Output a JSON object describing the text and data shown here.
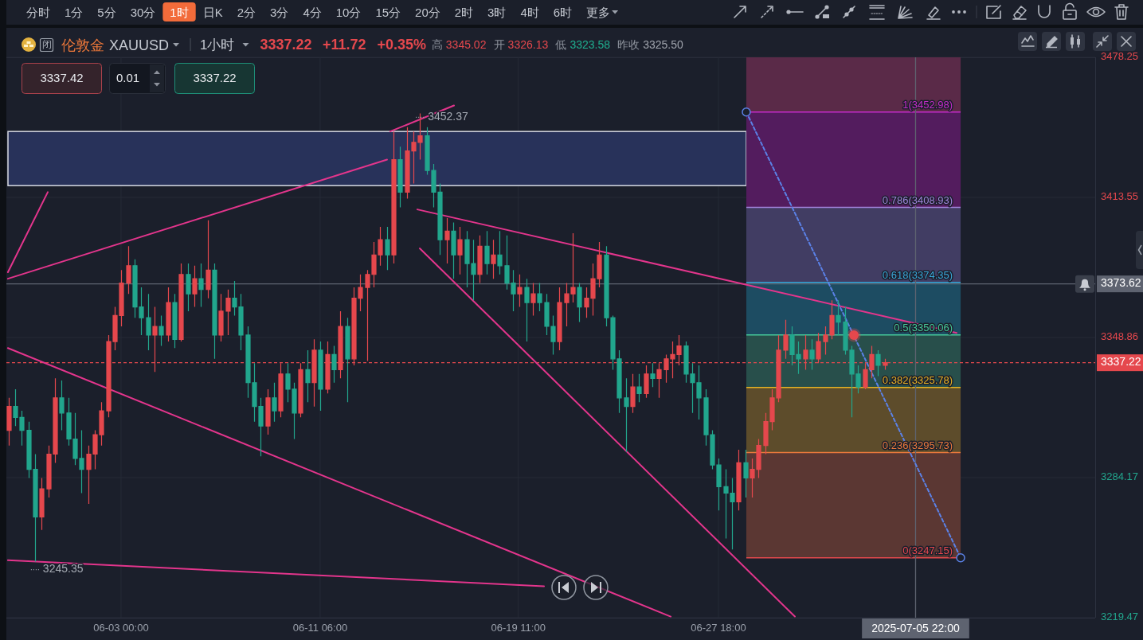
{
  "chart_data": {
    "type": "candlestick",
    "title": "伦敦金 XAUUSD",
    "subtitle": "1小时",
    "x": [
      "2025-05-29T08:00",
      "2025-05-29T14:36",
      "2025-05-29T21:12",
      "2025-05-30T03:48",
      "2025-05-30T10:24",
      "2025-05-30T17:00",
      "2025-05-30T23:36",
      "2025-05-31T06:12",
      "2025-05-31T12:48",
      "2025-05-31T19:24",
      "2025-06-01T02:00",
      "2025-06-01T08:36",
      "2025-06-01T15:12",
      "2025-06-01T21:48",
      "2025-06-02T04:24",
      "2025-06-02T11:00",
      "2025-06-02T17:36",
      "2025-06-03T00:12",
      "2025-06-03T06:48",
      "2025-06-03T13:24",
      "2025-06-03T20:00",
      "2025-06-04T02:36",
      "2025-06-04T09:12",
      "2025-06-04T15:48",
      "2025-06-04T22:24",
      "2025-06-05T05:00",
      "2025-06-05T11:36",
      "2025-06-05T18:12",
      "2025-06-06T00:48",
      "2025-06-06T07:24",
      "2025-06-06T14:00",
      "2025-06-06T20:36",
      "2025-06-07T03:12",
      "2025-06-07T09:48",
      "2025-06-07T16:24",
      "2025-06-07T23:00",
      "2025-06-08T05:36",
      "2025-06-08T12:12",
      "2025-06-08T18:48",
      "2025-06-09T01:24",
      "2025-06-09T08:00",
      "2025-06-09T14:36",
      "2025-06-09T21:12",
      "2025-06-10T03:48",
      "2025-06-10T10:24",
      "2025-06-10T17:00",
      "2025-06-10T23:36",
      "2025-06-11T06:12",
      "2025-06-11T12:48",
      "2025-06-11T19:24",
      "2025-06-12T02:00",
      "2025-06-12T08:36",
      "2025-06-12T15:12",
      "2025-06-12T21:48",
      "2025-06-13T04:24",
      "2025-06-13T11:00",
      "2025-06-13T17:36",
      "2025-06-14T00:12",
      "2025-06-14T06:48",
      "2025-06-14T13:24",
      "2025-06-14T20:00",
      "2025-06-15T02:36",
      "2025-06-15T09:12",
      "2025-06-15T15:48",
      "2025-06-15T22:24",
      "2025-06-16T05:00",
      "2025-06-16T11:36",
      "2025-06-16T18:12",
      "2025-06-17T00:48",
      "2025-06-17T07:24",
      "2025-06-17T14:00",
      "2025-06-17T20:36",
      "2025-06-18T03:12",
      "2025-06-18T09:48",
      "2025-06-18T16:24",
      "2025-06-18T23:00",
      "2025-06-19T05:36",
      "2025-06-19T12:12",
      "2025-06-19T18:48",
      "2025-06-20T01:24",
      "2025-06-20T08:00",
      "2025-06-20T14:36",
      "2025-06-20T21:12",
      "2025-06-21T03:48",
      "2025-06-21T10:24",
      "2025-06-21T17:00",
      "2025-06-21T23:36",
      "2025-06-22T06:12",
      "2025-06-22T12:48",
      "2025-06-22T19:24",
      "2025-06-23T02:00",
      "2025-06-23T08:36",
      "2025-06-23T15:12",
      "2025-06-23T21:48",
      "2025-06-24T04:24",
      "2025-06-24T11:00",
      "2025-06-24T17:36",
      "2025-06-25T00:12",
      "2025-06-25T06:48",
      "2025-06-25T13:24",
      "2025-06-25T20:00",
      "2025-06-26T02:36",
      "2025-06-26T09:12",
      "2025-06-26T15:48",
      "2025-06-26T22:24",
      "2025-06-27T05:00",
      "2025-06-27T11:36",
      "2025-06-27T18:12",
      "2025-06-28T00:48",
      "2025-06-28T07:24",
      "2025-06-28T14:00",
      "2025-06-28T20:36",
      "2025-06-29T03:12",
      "2025-06-29T09:48",
      "2025-06-29T16:24",
      "2025-06-29T23:00",
      "2025-06-30T05:36",
      "2025-06-30T12:12",
      "2025-06-30T18:48",
      "2025-07-01T01:24",
      "2025-07-01T08:00",
      "2025-07-01T14:36",
      "2025-07-01T21:12",
      "2025-07-02T03:48",
      "2025-07-02T10:24",
      "2025-07-02T17:00",
      "2025-07-02T23:36",
      "2025-07-03T06:12",
      "2025-07-03T12:48",
      "2025-07-03T19:24",
      "2025-07-04T02:00",
      "2025-07-04T08:36",
      "2025-07-04T15:12"
    ],
    "ohlc": [
      [
        3306,
        3321,
        3299,
        3317
      ],
      [
        3317,
        3325,
        3308,
        3312
      ],
      [
        3312,
        3315,
        3299,
        3306
      ],
      [
        3306,
        3310,
        3284,
        3288
      ],
      [
        3288,
        3295,
        3245.35,
        3266
      ],
      [
        3266,
        3284,
        3260,
        3279
      ],
      [
        3279,
        3299,
        3275,
        3295
      ],
      [
        3295,
        3330,
        3291,
        3321
      ],
      [
        3321,
        3329,
        3306,
        3314
      ],
      [
        3314,
        3321,
        3299,
        3302
      ],
      [
        3302,
        3314,
        3290,
        3293
      ],
      [
        3293,
        3306,
        3277,
        3288
      ],
      [
        3288,
        3299,
        3272,
        3295
      ],
      [
        3295,
        3306,
        3288,
        3304
      ],
      [
        3304,
        3319,
        3299,
        3315
      ],
      [
        3315,
        3350,
        3312,
        3347
      ],
      [
        3347,
        3363,
        3343,
        3359
      ],
      [
        3359,
        3380,
        3354,
        3374
      ],
      [
        3374,
        3391,
        3369,
        3382
      ],
      [
        3382,
        3385,
        3358,
        3363
      ],
      [
        3363,
        3372,
        3350,
        3358
      ],
      [
        3358,
        3369,
        3343,
        3350
      ],
      [
        3350,
        3363,
        3333,
        3354
      ],
      [
        3354,
        3359,
        3345,
        3350
      ],
      [
        3350,
        3372,
        3347,
        3365
      ],
      [
        3365,
        3369,
        3344,
        3348
      ],
      [
        3348,
        3383,
        3347,
        3378
      ],
      [
        3378,
        3383,
        3361,
        3369
      ],
      [
        3369,
        3382,
        3363,
        3376
      ],
      [
        3376,
        3383,
        3363,
        3371
      ],
      [
        3371,
        3403,
        3367,
        3380
      ],
      [
        3380,
        3383,
        3339,
        3350
      ],
      [
        3350,
        3369,
        3347,
        3361
      ],
      [
        3361,
        3371,
        3350,
        3367
      ],
      [
        3367,
        3375,
        3359,
        3363
      ],
      [
        3363,
        3369,
        3343,
        3350
      ],
      [
        3350,
        3354,
        3321,
        3328
      ],
      [
        3328,
        3337,
        3310,
        3317
      ],
      [
        3317,
        3321,
        3294,
        3308
      ],
      [
        3308,
        3325,
        3304,
        3321
      ],
      [
        3321,
        3328,
        3310,
        3315
      ],
      [
        3315,
        3337,
        3312,
        3332
      ],
      [
        3332,
        3337,
        3319,
        3325
      ],
      [
        3325,
        3328,
        3302,
        3314
      ],
      [
        3314,
        3337,
        3312,
        3334
      ],
      [
        3334,
        3343,
        3319,
        3328
      ],
      [
        3328,
        3348,
        3317,
        3343
      ],
      [
        3343,
        3347,
        3315,
        3325
      ],
      [
        3325,
        3347,
        3323,
        3341
      ],
      [
        3341,
        3345,
        3328,
        3334
      ],
      [
        3334,
        3361,
        3330,
        3354
      ],
      [
        3354,
        3358,
        3319,
        3339
      ],
      [
        3339,
        3372,
        3336,
        3367
      ],
      [
        3367,
        3378,
        3361,
        3372
      ],
      [
        3372,
        3380,
        3338,
        3378
      ],
      [
        3378,
        3393,
        3372,
        3387
      ],
      [
        3387,
        3400,
        3382,
        3394
      ],
      [
        3394,
        3400,
        3380,
        3387
      ],
      [
        3387,
        3444,
        3383,
        3431
      ],
      [
        3431,
        3437,
        3409,
        3416
      ],
      [
        3416,
        3446,
        3413,
        3435
      ],
      [
        3435,
        3444,
        3420,
        3439
      ],
      [
        3439,
        3452.37,
        3431,
        3442
      ],
      [
        3442,
        3446,
        3424,
        3426
      ],
      [
        3426,
        3429,
        3409,
        3416
      ],
      [
        3416,
        3420,
        3387,
        3394
      ],
      [
        3394,
        3404,
        3383,
        3398
      ],
      [
        3398,
        3402,
        3376,
        3387
      ],
      [
        3387,
        3400,
        3378,
        3394
      ],
      [
        3394,
        3398,
        3372,
        3383
      ],
      [
        3383,
        3394,
        3366,
        3378
      ],
      [
        3378,
        3396,
        3374,
        3391
      ],
      [
        3391,
        3398,
        3378,
        3383
      ],
      [
        3383,
        3394,
        3376,
        3387
      ],
      [
        3387,
        3398,
        3378,
        3382
      ],
      [
        3382,
        3396,
        3371,
        3374
      ],
      [
        3374,
        3380,
        3361,
        3369
      ],
      [
        3369,
        3378,
        3363,
        3372
      ],
      [
        3372,
        3376,
        3347,
        3365
      ],
      [
        3365,
        3374,
        3359,
        3369
      ],
      [
        3369,
        3374,
        3361,
        3365
      ],
      [
        3365,
        3369,
        3350,
        3354
      ],
      [
        3354,
        3359,
        3341,
        3347
      ],
      [
        3347,
        3372,
        3343,
        3365
      ],
      [
        3365,
        3374,
        3354,
        3369
      ],
      [
        3369,
        3397,
        3365,
        3372
      ],
      [
        3372,
        3374,
        3356,
        3363
      ],
      [
        3363,
        3372,
        3358,
        3367
      ],
      [
        3367,
        3383,
        3359,
        3376
      ],
      [
        3376,
        3393,
        3372,
        3387
      ],
      [
        3387,
        3391,
        3354,
        3358
      ],
      [
        3358,
        3359,
        3334,
        3339
      ],
      [
        3339,
        3343,
        3314,
        3321
      ],
      [
        3321,
        3330,
        3296,
        3317
      ],
      [
        3317,
        3332,
        3314,
        3326
      ],
      [
        3326,
        3332,
        3319,
        3323
      ],
      [
        3323,
        3336,
        3321,
        3332
      ],
      [
        3332,
        3337,
        3326,
        3330
      ],
      [
        3330,
        3337,
        3321,
        3334
      ],
      [
        3334,
        3341,
        3328,
        3339
      ],
      [
        3339,
        3347,
        3330,
        3341
      ],
      [
        3341,
        3350,
        3336,
        3345
      ],
      [
        3345,
        3347,
        3328,
        3332
      ],
      [
        3332,
        3337,
        3314,
        3328
      ],
      [
        3328,
        3336,
        3311,
        3321
      ],
      [
        3321,
        3325,
        3299,
        3304
      ],
      [
        3304,
        3306,
        3288,
        3290
      ],
      [
        3290,
        3293,
        3269,
        3280
      ],
      [
        3280,
        3288,
        3256,
        3277
      ],
      [
        3277,
        3284,
        3251,
        3273
      ],
      [
        3273,
        3297,
        3269,
        3291
      ],
      [
        3291,
        3297,
        3275,
        3284
      ],
      [
        3284,
        3293,
        3275,
        3288
      ],
      [
        3288,
        3302,
        3284,
        3299
      ],
      [
        3299,
        3314,
        3295,
        3310
      ],
      [
        3310,
        3325,
        3306,
        3321
      ],
      [
        3321,
        3350,
        3319,
        3343
      ],
      [
        3343,
        3357,
        3339,
        3350
      ],
      [
        3350,
        3354,
        3336,
        3341
      ],
      [
        3341,
        3347,
        3332,
        3339
      ],
      [
        3339,
        3350,
        3334,
        3343
      ],
      [
        3343,
        3348,
        3334,
        3339
      ],
      [
        3339,
        3351,
        3337,
        3347
      ],
      [
        3347,
        3354,
        3341,
        3350
      ],
      [
        3350,
        3366,
        3348,
        3359
      ],
      [
        3359,
        3366,
        3350,
        3356
      ],
      [
        3356,
        3363,
        3341,
        3343
      ],
      [
        3343,
        3345,
        3312,
        3332
      ],
      [
        3332,
        3336,
        3323,
        3326
      ],
      [
        3326,
        3337,
        3325,
        3334
      ],
      [
        3334,
        3345,
        3330,
        3341
      ],
      [
        3341,
        3343,
        3331,
        3336
      ],
      [
        3336,
        3339,
        3334,
        3337.22
      ]
    ],
    "xlim": [
      "2025-05-29T06:00",
      "2025-07-13T08:36"
    ],
    "xticks": [
      {
        "value": "2025-06-03T00:00",
        "label": "06-03 00:00"
      },
      {
        "value": "2025-06-11T06:00",
        "label": "06-11 06:00"
      },
      {
        "value": "2025-06-19T11:00",
        "label": "06-19 11:00"
      },
      {
        "value": "2025-06-27T18:00",
        "label": "06-27 18:00"
      }
    ],
    "ylim": [
      3219.47,
      3478.25
    ],
    "yticks": [
      3219.47,
      3284.17,
      3348.86,
      3413.55,
      3478.25
    ],
    "grid": true,
    "series": [
      {
        "type": "line",
        "x": [
          "2025-05-29T07:30",
          "2025-05-30T23:10"
        ],
        "values": [
          3379,
          3416
        ],
        "color": "#e3358c"
      },
      {
        "type": "line",
        "x": [
          "2025-05-29T07:30",
          "2025-06-14T00:30"
        ],
        "values": [
          3376,
          3431
        ],
        "color": "#e3358c"
      },
      {
        "type": "line",
        "x": [
          "2025-06-14T03:40",
          "2025-06-16T19:05"
        ],
        "values": [
          3444,
          3456
        ],
        "color": "#e3358c"
      },
      {
        "type": "line",
        "x": [
          "2025-06-15T06:36",
          "2025-07-07T14:48"
        ],
        "values": [
          3408,
          3351
        ],
        "color": "#e3358c"
      },
      {
        "type": "line",
        "x": [
          "2025-06-15T09:00",
          "2025-06-30T22:00"
        ],
        "values": [
          3390,
          3220
        ],
        "color": "#e3358c"
      },
      {
        "type": "line",
        "x": [
          "2025-05-29T07:30",
          "2025-06-25T18:30"
        ],
        "values": [
          3344,
          3220
        ],
        "color": "#e3358c"
      },
      {
        "type": "line",
        "x": [
          "2025-05-29T07:30",
          "2025-06-20T12:36"
        ],
        "values": [
          3246,
          3234
        ],
        "color": "#e3358c"
      },
      {
        "type": "line",
        "x": [
          "2025-06-28T21:42",
          "2025-07-07T18:48"
        ],
        "values": [
          3452.98,
          3247.15
        ],
        "color": "#5b82e8",
        "line_style": "dashed",
        "marker": "circle"
      },
      {
        "type": "scatter",
        "x": [
          "2025-07-03T08:42"
        ],
        "values": [
          3350
        ],
        "color": "#e5484d",
        "marker": "circle"
      }
    ],
    "bands": [
      {
        "axis": "y",
        "from": 3419,
        "to": 3444,
        "color": "#28325a"
      },
      {
        "axis": "y",
        "from": 3452.98,
        "to": 3478.25,
        "color": "#5a2a48"
      },
      {
        "axis": "y",
        "from": 3408.93,
        "to": 3452.98,
        "color": "#531c5e"
      },
      {
        "axis": "y",
        "from": 3374.35,
        "to": 3408.93,
        "color": "#413d63"
      },
      {
        "axis": "y",
        "from": 3350.06,
        "to": 3374.35,
        "color": "#1d4c62"
      },
      {
        "axis": "y",
        "from": 3325.78,
        "to": 3350.06,
        "color": "#284f4b"
      },
      {
        "axis": "y",
        "from": 3295.73,
        "to": 3325.78,
        "color": "#5d4c2b"
      },
      {
        "axis": "y",
        "from": 3247.15,
        "to": 3295.73,
        "color": "#5b3733"
      }
    ],
    "ref_lines": [
      {
        "axis": "y",
        "value": 3452.98,
        "label": "1(3452.98)",
        "color": "#c62bc9"
      },
      {
        "axis": "y",
        "value": 3408.93,
        "label": "0.786(3408.93)",
        "color": "#a283dc"
      },
      {
        "axis": "y",
        "value": 3374.35,
        "label": "0.618(3374.35)",
        "color": "#3ba6d8"
      },
      {
        "axis": "y",
        "value": 3350.06,
        "label": "0.5(3350.06)",
        "color": "#45c99a"
      },
      {
        "axis": "y",
        "value": 3325.78,
        "label": "0.382(3325.78)",
        "color": "#e6b325"
      },
      {
        "axis": "y",
        "value": 3295.73,
        "label": "0.236(3295.73)",
        "color": "#ec7a3c"
      },
      {
        "axis": "y",
        "value": 3247.15,
        "label": "0(3247.15)",
        "color": "#e5484d"
      },
      {
        "axis": "y",
        "value": 3373.62,
        "label": "3373.62",
        "color": "#5e6370",
        "line_style": "solid"
      },
      {
        "axis": "y",
        "value": 3337.22,
        "label": "3337.22",
        "color": "#e5484d",
        "line_style": "dashed"
      },
      {
        "axis": "x",
        "value": "2025-07-05T22:00",
        "label": "2025-07-05 22:00",
        "color": "#5e6370",
        "line_style": "solid"
      }
    ],
    "annotations": [
      "分时",
      "1分",
      "5分",
      "30分",
      "1时",
      "日K",
      "2分",
      "3分",
      "4分",
      "10分",
      "15分",
      "20分",
      "2时",
      "3时",
      "4时",
      "6时",
      "更多",
      "闭",
      "3337.22",
      "+11.72",
      "+0.35%",
      "高 3345.02",
      "开 3326.13",
      "低 3323.58",
      "昨收 3325.50",
      "3337.42",
      "0.01",
      "3337.22",
      {
        "text": "3452.37",
        "x": "2025-06-15T09:12",
        "y": 3452.37
      },
      {
        "text": "3245.35",
        "x": "2025-05-30T10:24",
        "y": 3245.35
      }
    ]
  }
}
